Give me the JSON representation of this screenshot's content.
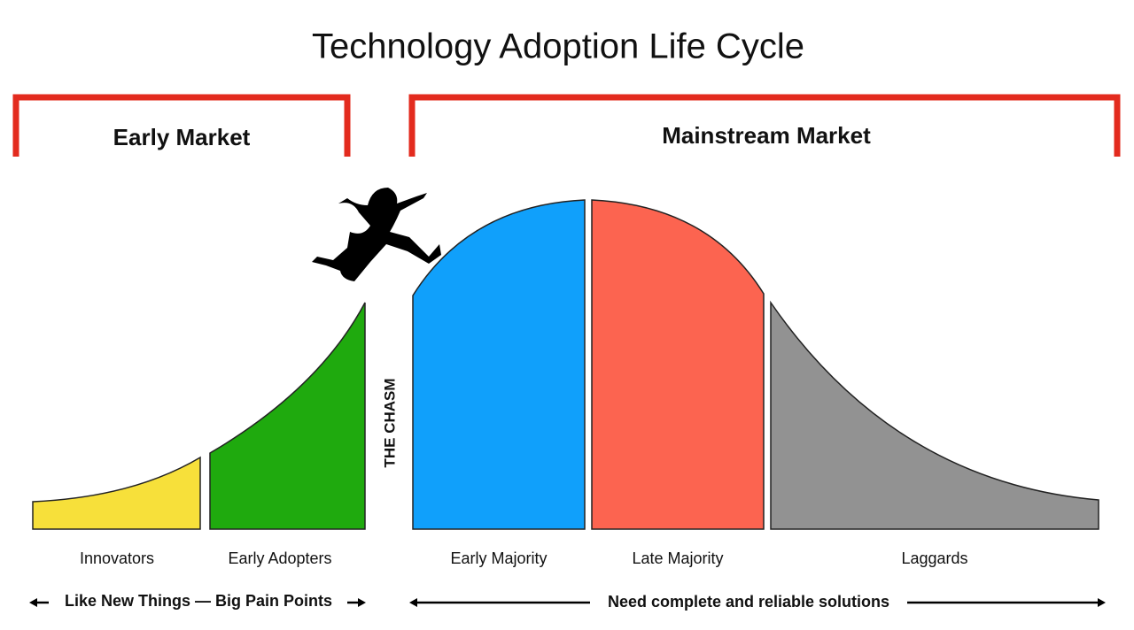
{
  "title": "Technology Adoption Life Cycle",
  "markets": [
    {
      "label": "Early Market"
    },
    {
      "label": "Mainstream Market"
    }
  ],
  "segments": [
    {
      "label": "Innovators"
    },
    {
      "label": "Early Adopters"
    },
    {
      "label": "Early Majority"
    },
    {
      "label": "Late Majority"
    },
    {
      "label": "Laggards"
    }
  ],
  "chasm": "THE CHASM",
  "notes": [
    {
      "label": "Like New Things — Big Pain Points"
    },
    {
      "label": "Need complete and reliable solutions"
    }
  ]
}
